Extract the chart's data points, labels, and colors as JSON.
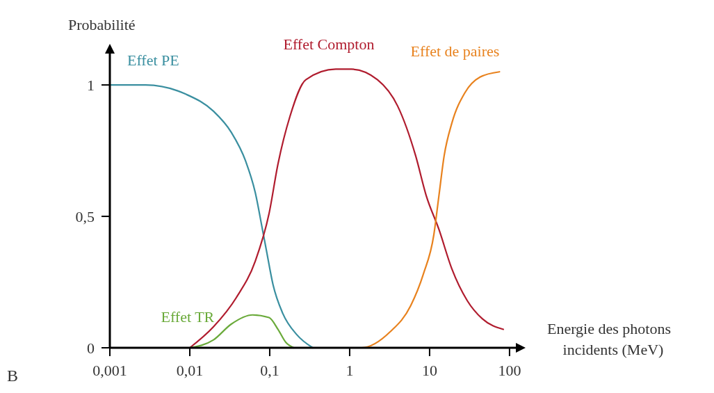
{
  "chart_data": {
    "type": "line",
    "ylabel": "Probabilité",
    "xlabel": "Energie des photons\nincidents (MeV)",
    "log": "x",
    "grid": false,
    "marker": "none",
    "line_style": "solid",
    "xlim": [
      0.001,
      130
    ],
    "ylim": [
      0,
      1.13
    ],
    "xticks": [
      {
        "value": 0.001,
        "label": "0,001"
      },
      {
        "value": 0.01,
        "label": "0,01"
      },
      {
        "value": 0.1,
        "label": "0,1"
      },
      1,
      10,
      100
    ],
    "yticks": [
      0,
      {
        "value": 0.5,
        "label": "0,5"
      },
      1
    ],
    "annotations": [
      "B"
    ],
    "series": [
      {
        "name": "Effet PE",
        "color": "#3a8fa0",
        "x": [
          0.001,
          0.0011,
          0.0028,
          0.0089,
          0.0198,
          0.033,
          0.05,
          0.066,
          0.08,
          0.091,
          0.11,
          0.146,
          0.218,
          0.346
        ],
        "values": [
          1.0,
          1.0,
          1.0,
          0.965,
          0.9,
          0.82,
          0.71,
          0.59,
          0.46,
          0.37,
          0.24,
          0.13,
          0.05,
          0
        ]
      },
      {
        "name": "Effet Compton",
        "color": "#b01c2e",
        "x": [
          0.01,
          0.0198,
          0.038,
          0.066,
          0.098,
          0.127,
          0.179,
          0.283,
          0.67,
          1.05,
          2.23,
          3.98,
          6.7,
          9.05,
          13.1,
          19,
          29.5,
          45.8,
          83.6
        ],
        "values": [
          0,
          0.08,
          0.19,
          0.33,
          0.51,
          0.7,
          0.88,
          1.02,
          1.06,
          1.06,
          1.02,
          0.92,
          0.73,
          0.58,
          0.45,
          0.3,
          0.18,
          0.11,
          0.07
        ]
      },
      {
        "name": "Effet de paires",
        "color": "#e8821e",
        "x": [
          1,
          1.41,
          3.19,
          5.8,
          8.35,
          11.3,
          13.1,
          15.2,
          19,
          27.6,
          42.8,
          74.8
        ],
        "values": [
          0,
          0,
          0.06,
          0.16,
          0.28,
          0.43,
          0.58,
          0.73,
          0.855,
          0.97,
          1.03,
          1.05
        ]
      },
      {
        "name": "Effet TR",
        "color": "#6aaa3a",
        "x": [
          0.01,
          0.0198,
          0.033,
          0.061,
          0.098,
          0.127,
          0.16,
          0.2
        ],
        "values": [
          0,
          0.03,
          0.09,
          0.125,
          0.115,
          0.07,
          0.02,
          0
        ]
      }
    ]
  }
}
